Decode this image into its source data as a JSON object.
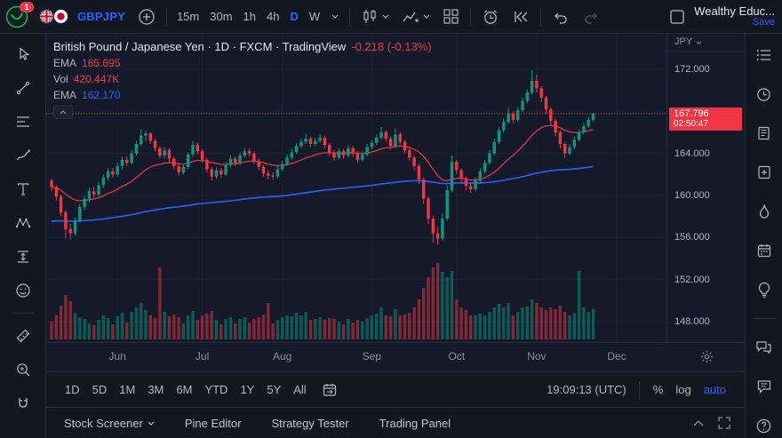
{
  "colors": {
    "accent": "#2962ff",
    "up": "#089981",
    "down": "#f23645",
    "badge_bg": "#f23645",
    "pane_bg": "#141a29",
    "toolbar_bg": "#131722"
  },
  "top_toolbar": {
    "notification_count": "1",
    "symbol": "GBPJPY",
    "intervals": [
      "15m",
      "30m",
      "1h",
      "4h",
      "D",
      "W"
    ],
    "active_interval": "D",
    "account_name": "Wealthy Educ...",
    "save_label": "Save"
  },
  "left_toolbar": {
    "tools": [
      "cursor",
      "trend-line",
      "fib-retracement",
      "brush",
      "text",
      "xabcd-pattern",
      "forecast",
      "emoji",
      "ruler",
      "zoom",
      "magnet"
    ]
  },
  "right_sidebar": {
    "items": [
      "watchlist",
      "alerts",
      "news",
      "notebook",
      "hotlists",
      "calendar",
      "ideas",
      "chat",
      "conversation",
      "help"
    ]
  },
  "legend": {
    "title": "British Pound / Japanese Yen · 1D · FXCM · TradingView",
    "change": "-0.218 (-0.13%)",
    "rows": [
      {
        "label": "EMA",
        "value": "165.695",
        "color": "#f23645"
      },
      {
        "label": "Vol",
        "value": "420.447K",
        "color": "#f23645"
      },
      {
        "label": "EMA",
        "value": "162.170",
        "color": "#2962ff"
      }
    ]
  },
  "price_axis": {
    "currency_label": "JPY",
    "last_price_label": "167.796",
    "countdown": "02:50:47"
  },
  "bottom_toolbar": {
    "ranges": [
      "1D",
      "5D",
      "1M",
      "3M",
      "6M",
      "YTD",
      "1Y",
      "5Y",
      "All"
    ],
    "clock": "19:09:13 (UTC)",
    "scales": [
      "%",
      "log",
      "auto"
    ],
    "active_scale": "auto"
  },
  "bottom_panel": {
    "items": [
      "Stock Screener",
      "Pine Editor",
      "Strategy Tester",
      "Trading Panel"
    ]
  },
  "chart_data": {
    "type": "candlestick",
    "symbol": "GBPJPY",
    "interval": "1D",
    "exchange": "FXCM",
    "price_range": [
      148,
      172
    ],
    "axis_prices": [
      172,
      164,
      160,
      156,
      152,
      148
    ],
    "last_price": 167.796,
    "change": -0.218,
    "change_pct": -0.13,
    "ema_fast": 165.695,
    "ema_slow": 162.17,
    "volume_label": "420.447K",
    "month_ticks": [
      {
        "label": "Jun",
        "index": 14
      },
      {
        "label": "Jul",
        "index": 32
      },
      {
        "label": "Aug",
        "index": 49
      },
      {
        "label": "Sep",
        "index": 68
      },
      {
        "label": "Oct",
        "index": 86
      },
      {
        "label": "Nov",
        "index": 103
      },
      {
        "label": "Dec",
        "index": 120
      }
    ],
    "candles": [
      [
        161.4,
        161.6,
        160.4,
        160.8,
        0.22
      ],
      [
        160.8,
        161.0,
        159.5,
        159.9,
        0.3
      ],
      [
        159.9,
        160.1,
        158.0,
        158.4,
        0.42
      ],
      [
        158.4,
        158.6,
        155.9,
        156.8,
        0.55
      ],
      [
        156.8,
        157.3,
        155.8,
        156.4,
        0.48
      ],
      [
        156.4,
        157.9,
        156.2,
        157.6,
        0.33
      ],
      [
        157.6,
        159.2,
        157.4,
        158.9,
        0.28
      ],
      [
        158.9,
        160.0,
        158.6,
        159.7,
        0.26
      ],
      [
        159.7,
        160.7,
        159.4,
        160.4,
        0.2
      ],
      [
        160.4,
        160.8,
        159.8,
        160.1,
        0.18
      ],
      [
        160.1,
        161.3,
        159.9,
        161.0,
        0.24
      ],
      [
        161.0,
        162.0,
        160.7,
        161.7,
        0.3
      ],
      [
        161.7,
        162.6,
        161.4,
        162.3,
        0.27
      ],
      [
        162.3,
        162.6,
        161.7,
        162.0,
        0.19
      ],
      [
        162.0,
        163.1,
        161.8,
        162.8,
        0.29
      ],
      [
        162.8,
        163.7,
        162.5,
        163.4,
        0.33
      ],
      [
        163.4,
        163.7,
        162.8,
        163.1,
        0.21
      ],
      [
        163.1,
        164.3,
        162.9,
        164.0,
        0.34
      ],
      [
        164.0,
        165.2,
        163.8,
        164.9,
        0.4
      ],
      [
        164.9,
        166.3,
        164.7,
        165.7,
        0.46
      ],
      [
        165.7,
        166.2,
        165.2,
        165.9,
        0.37
      ],
      [
        165.9,
        166.0,
        164.9,
        165.2,
        0.3
      ],
      [
        165.2,
        165.4,
        164.2,
        164.5,
        0.27
      ],
      [
        164.5,
        164.7,
        163.5,
        163.8,
        0.9
      ],
      [
        163.8,
        164.6,
        163.5,
        164.3,
        0.34
      ],
      [
        164.3,
        164.5,
        163.2,
        163.5,
        0.29
      ],
      [
        163.5,
        163.7,
        162.5,
        162.8,
        0.31
      ],
      [
        162.8,
        163.0,
        161.9,
        162.2,
        0.28
      ],
      [
        162.2,
        162.9,
        162.0,
        162.7,
        0.2
      ],
      [
        162.7,
        164.1,
        162.5,
        163.9,
        0.3
      ],
      [
        163.9,
        165.2,
        163.7,
        164.8,
        0.36
      ],
      [
        164.8,
        165.0,
        163.9,
        164.2,
        0.24
      ],
      [
        164.2,
        164.4,
        163.1,
        163.4,
        0.3
      ],
      [
        163.4,
        163.6,
        162.2,
        162.5,
        0.32
      ],
      [
        162.5,
        162.7,
        161.4,
        161.8,
        0.36
      ],
      [
        161.8,
        162.7,
        161.6,
        162.4,
        0.24
      ],
      [
        162.4,
        162.6,
        161.7,
        162.0,
        0.19
      ],
      [
        162.0,
        163.2,
        161.8,
        162.9,
        0.25
      ],
      [
        162.9,
        163.8,
        162.7,
        163.5,
        0.28
      ],
      [
        163.5,
        163.7,
        162.8,
        163.1,
        0.2
      ],
      [
        163.1,
        164.1,
        162.9,
        163.8,
        0.26
      ],
      [
        163.8,
        164.5,
        163.6,
        164.2,
        0.28
      ],
      [
        164.2,
        164.5,
        163.7,
        164.0,
        0.21
      ],
      [
        164.0,
        164.2,
        163.0,
        163.3,
        0.25
      ],
      [
        163.3,
        163.5,
        162.4,
        162.7,
        0.28
      ],
      [
        162.7,
        162.9,
        161.8,
        162.1,
        0.31
      ],
      [
        162.1,
        162.4,
        161.5,
        161.9,
        0.45
      ],
      [
        161.9,
        162.2,
        161.5,
        161.8,
        0.2
      ],
      [
        161.8,
        162.8,
        161.6,
        162.5,
        0.24
      ],
      [
        162.5,
        163.3,
        162.3,
        163.0,
        0.28
      ],
      [
        163.0,
        163.9,
        162.8,
        163.6,
        0.3
      ],
      [
        163.6,
        164.4,
        163.4,
        164.1,
        0.29
      ],
      [
        164.1,
        165.0,
        163.9,
        164.7,
        0.33
      ],
      [
        164.7,
        165.4,
        164.5,
        165.1,
        0.3
      ],
      [
        165.1,
        165.8,
        164.9,
        165.4,
        0.35
      ],
      [
        165.4,
        165.6,
        164.6,
        164.9,
        0.24
      ],
      [
        164.9,
        165.5,
        164.7,
        165.2,
        0.26
      ],
      [
        165.2,
        165.8,
        165.0,
        165.5,
        0.28
      ],
      [
        165.5,
        165.7,
        164.5,
        164.8,
        0.24
      ],
      [
        164.8,
        165.0,
        163.8,
        164.1,
        0.27
      ],
      [
        164.1,
        164.3,
        163.3,
        163.6,
        0.25
      ],
      [
        163.6,
        164.5,
        163.4,
        164.2,
        0.22
      ],
      [
        164.2,
        164.4,
        163.5,
        163.8,
        0.19
      ],
      [
        163.8,
        164.8,
        163.6,
        164.5,
        0.26
      ],
      [
        164.5,
        164.7,
        163.7,
        164.0,
        0.21
      ],
      [
        164.0,
        164.2,
        163.1,
        163.4,
        0.24
      ],
      [
        163.4,
        164.2,
        163.2,
        163.9,
        0.22
      ],
      [
        163.9,
        164.9,
        163.7,
        164.6,
        0.27
      ],
      [
        164.6,
        165.3,
        164.4,
        165.0,
        0.3
      ],
      [
        165.0,
        165.8,
        164.8,
        165.5,
        0.32
      ],
      [
        165.5,
        166.5,
        165.3,
        166.0,
        0.4
      ],
      [
        166.0,
        166.2,
        165.1,
        165.4,
        0.3
      ],
      [
        165.4,
        165.6,
        164.4,
        164.7,
        0.29
      ],
      [
        164.7,
        166.4,
        164.5,
        165.8,
        0.38
      ],
      [
        165.8,
        166.0,
        164.8,
        165.1,
        0.3
      ],
      [
        165.1,
        165.3,
        164.0,
        164.3,
        0.31
      ],
      [
        164.3,
        164.5,
        163.3,
        163.6,
        0.33
      ],
      [
        163.6,
        163.8,
        162.4,
        162.8,
        0.4
      ],
      [
        162.8,
        163.0,
        161.1,
        161.5,
        0.5
      ],
      [
        161.5,
        161.7,
        159.2,
        159.7,
        0.64
      ],
      [
        159.7,
        159.9,
        157.3,
        157.8,
        0.78
      ],
      [
        157.8,
        158.1,
        155.5,
        156.4,
        0.9
      ],
      [
        156.4,
        157.0,
        155.3,
        155.9,
        0.95
      ],
      [
        155.9,
        158.3,
        155.7,
        157.8,
        0.84
      ],
      [
        157.8,
        161.0,
        157.6,
        160.5,
        0.78
      ],
      [
        160.5,
        163.8,
        160.3,
        163.2,
        0.85
      ],
      [
        163.2,
        163.4,
        162.0,
        162.4,
        0.5
      ],
      [
        162.4,
        162.6,
        161.2,
        161.6,
        0.4
      ],
      [
        161.6,
        161.8,
        160.5,
        160.9,
        0.37
      ],
      [
        160.9,
        161.2,
        160.2,
        160.6,
        0.3
      ],
      [
        160.6,
        161.7,
        160.4,
        161.4,
        0.3
      ],
      [
        161.4,
        162.6,
        161.2,
        162.3,
        0.32
      ],
      [
        162.3,
        163.4,
        162.1,
        163.1,
        0.3
      ],
      [
        163.1,
        164.3,
        162.9,
        164.0,
        0.35
      ],
      [
        164.0,
        165.4,
        163.8,
        165.1,
        0.4
      ],
      [
        165.1,
        166.5,
        164.9,
        166.2,
        0.44
      ],
      [
        166.2,
        167.3,
        166.0,
        167.0,
        0.4
      ],
      [
        167.0,
        168.4,
        166.8,
        167.8,
        0.46
      ],
      [
        167.8,
        168.0,
        166.9,
        167.2,
        0.3
      ],
      [
        167.2,
        168.4,
        167.0,
        168.1,
        0.35
      ],
      [
        168.1,
        169.3,
        167.9,
        169.0,
        0.4
      ],
      [
        169.0,
        170.1,
        168.8,
        169.8,
        0.41
      ],
      [
        169.8,
        171.9,
        169.6,
        170.9,
        0.5
      ],
      [
        170.9,
        171.5,
        169.8,
        170.2,
        0.45
      ],
      [
        170.2,
        170.4,
        168.9,
        169.3,
        0.4
      ],
      [
        169.3,
        169.5,
        167.8,
        168.2,
        0.37
      ],
      [
        168.2,
        168.4,
        166.7,
        167.1,
        0.4
      ],
      [
        167.1,
        167.3,
        165.6,
        166.0,
        0.38
      ],
      [
        166.0,
        166.2,
        164.5,
        164.9,
        0.42
      ],
      [
        164.9,
        165.1,
        163.6,
        164.0,
        0.35
      ],
      [
        164.0,
        164.9,
        163.8,
        164.6,
        0.3
      ],
      [
        164.6,
        165.6,
        164.4,
        165.3,
        0.33
      ],
      [
        165.3,
        166.3,
        165.1,
        166.0,
        0.85
      ],
      [
        166.0,
        166.9,
        165.8,
        166.6,
        0.4
      ],
      [
        166.6,
        167.5,
        166.4,
        167.2,
        0.34
      ],
      [
        167.2,
        167.9,
        167.0,
        167.796,
        0.38
      ]
    ]
  }
}
